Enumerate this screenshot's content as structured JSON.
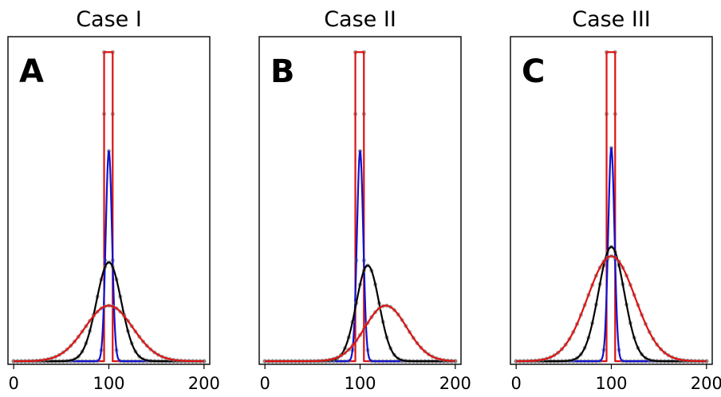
{
  "chart_data": [
    {
      "type": "line",
      "title": "Case I",
      "panel_label": "A",
      "xlim": [
        -6,
        206
      ],
      "ylim": [
        -0.01,
        1.05
      ],
      "x_ticks": [
        0,
        100,
        200
      ],
      "y_ticks": [],
      "grid": false,
      "series": [
        {
          "kind": "box",
          "color": "#dd1111",
          "left": 95,
          "right": 104,
          "height": 1.0
        },
        {
          "kind": "gauss",
          "color": "#1111cc",
          "center": 100,
          "sigma": 3.3,
          "height": 0.68
        },
        {
          "kind": "gauss",
          "color": "#000000",
          "center": 100,
          "sigma": 13,
          "height": 0.32
        },
        {
          "kind": "gauss",
          "color": "#dd1111",
          "center": 100,
          "sigma": 25,
          "height": 0.18
        }
      ]
    },
    {
      "type": "line",
      "title": "Case II",
      "panel_label": "B",
      "xlim": [
        -6,
        206
      ],
      "ylim": [
        -0.01,
        1.05
      ],
      "x_ticks": [
        0,
        100,
        200
      ],
      "y_ticks": [],
      "grid": false,
      "series": [
        {
          "kind": "box",
          "color": "#dd1111",
          "left": 95,
          "right": 104,
          "height": 1.0
        },
        {
          "kind": "gauss",
          "color": "#1111cc",
          "center": 100,
          "sigma": 3.3,
          "height": 0.68
        },
        {
          "kind": "gauss",
          "color": "#000000",
          "center": 108,
          "sigma": 12,
          "height": 0.31
        },
        {
          "kind": "gauss",
          "color": "#dd1111",
          "center": 127,
          "sigma": 22,
          "height": 0.18
        }
      ]
    },
    {
      "type": "line",
      "title": "Case III",
      "panel_label": "C",
      "xlim": [
        -6,
        206
      ],
      "ylim": [
        -0.01,
        1.05
      ],
      "x_ticks": [
        0,
        100,
        200
      ],
      "y_ticks": [],
      "grid": false,
      "series": [
        {
          "kind": "box",
          "color": "#dd1111",
          "left": 95,
          "right": 104,
          "height": 1.0
        },
        {
          "kind": "gauss",
          "color": "#1111cc",
          "center": 100,
          "sigma": 3.3,
          "height": 0.69
        },
        {
          "kind": "gauss",
          "color": "#000000",
          "center": 100,
          "sigma": 13.5,
          "height": 0.37
        },
        {
          "kind": "gauss",
          "color": "#dd1111",
          "center": 100,
          "sigma": 25,
          "height": 0.34
        }
      ]
    }
  ]
}
